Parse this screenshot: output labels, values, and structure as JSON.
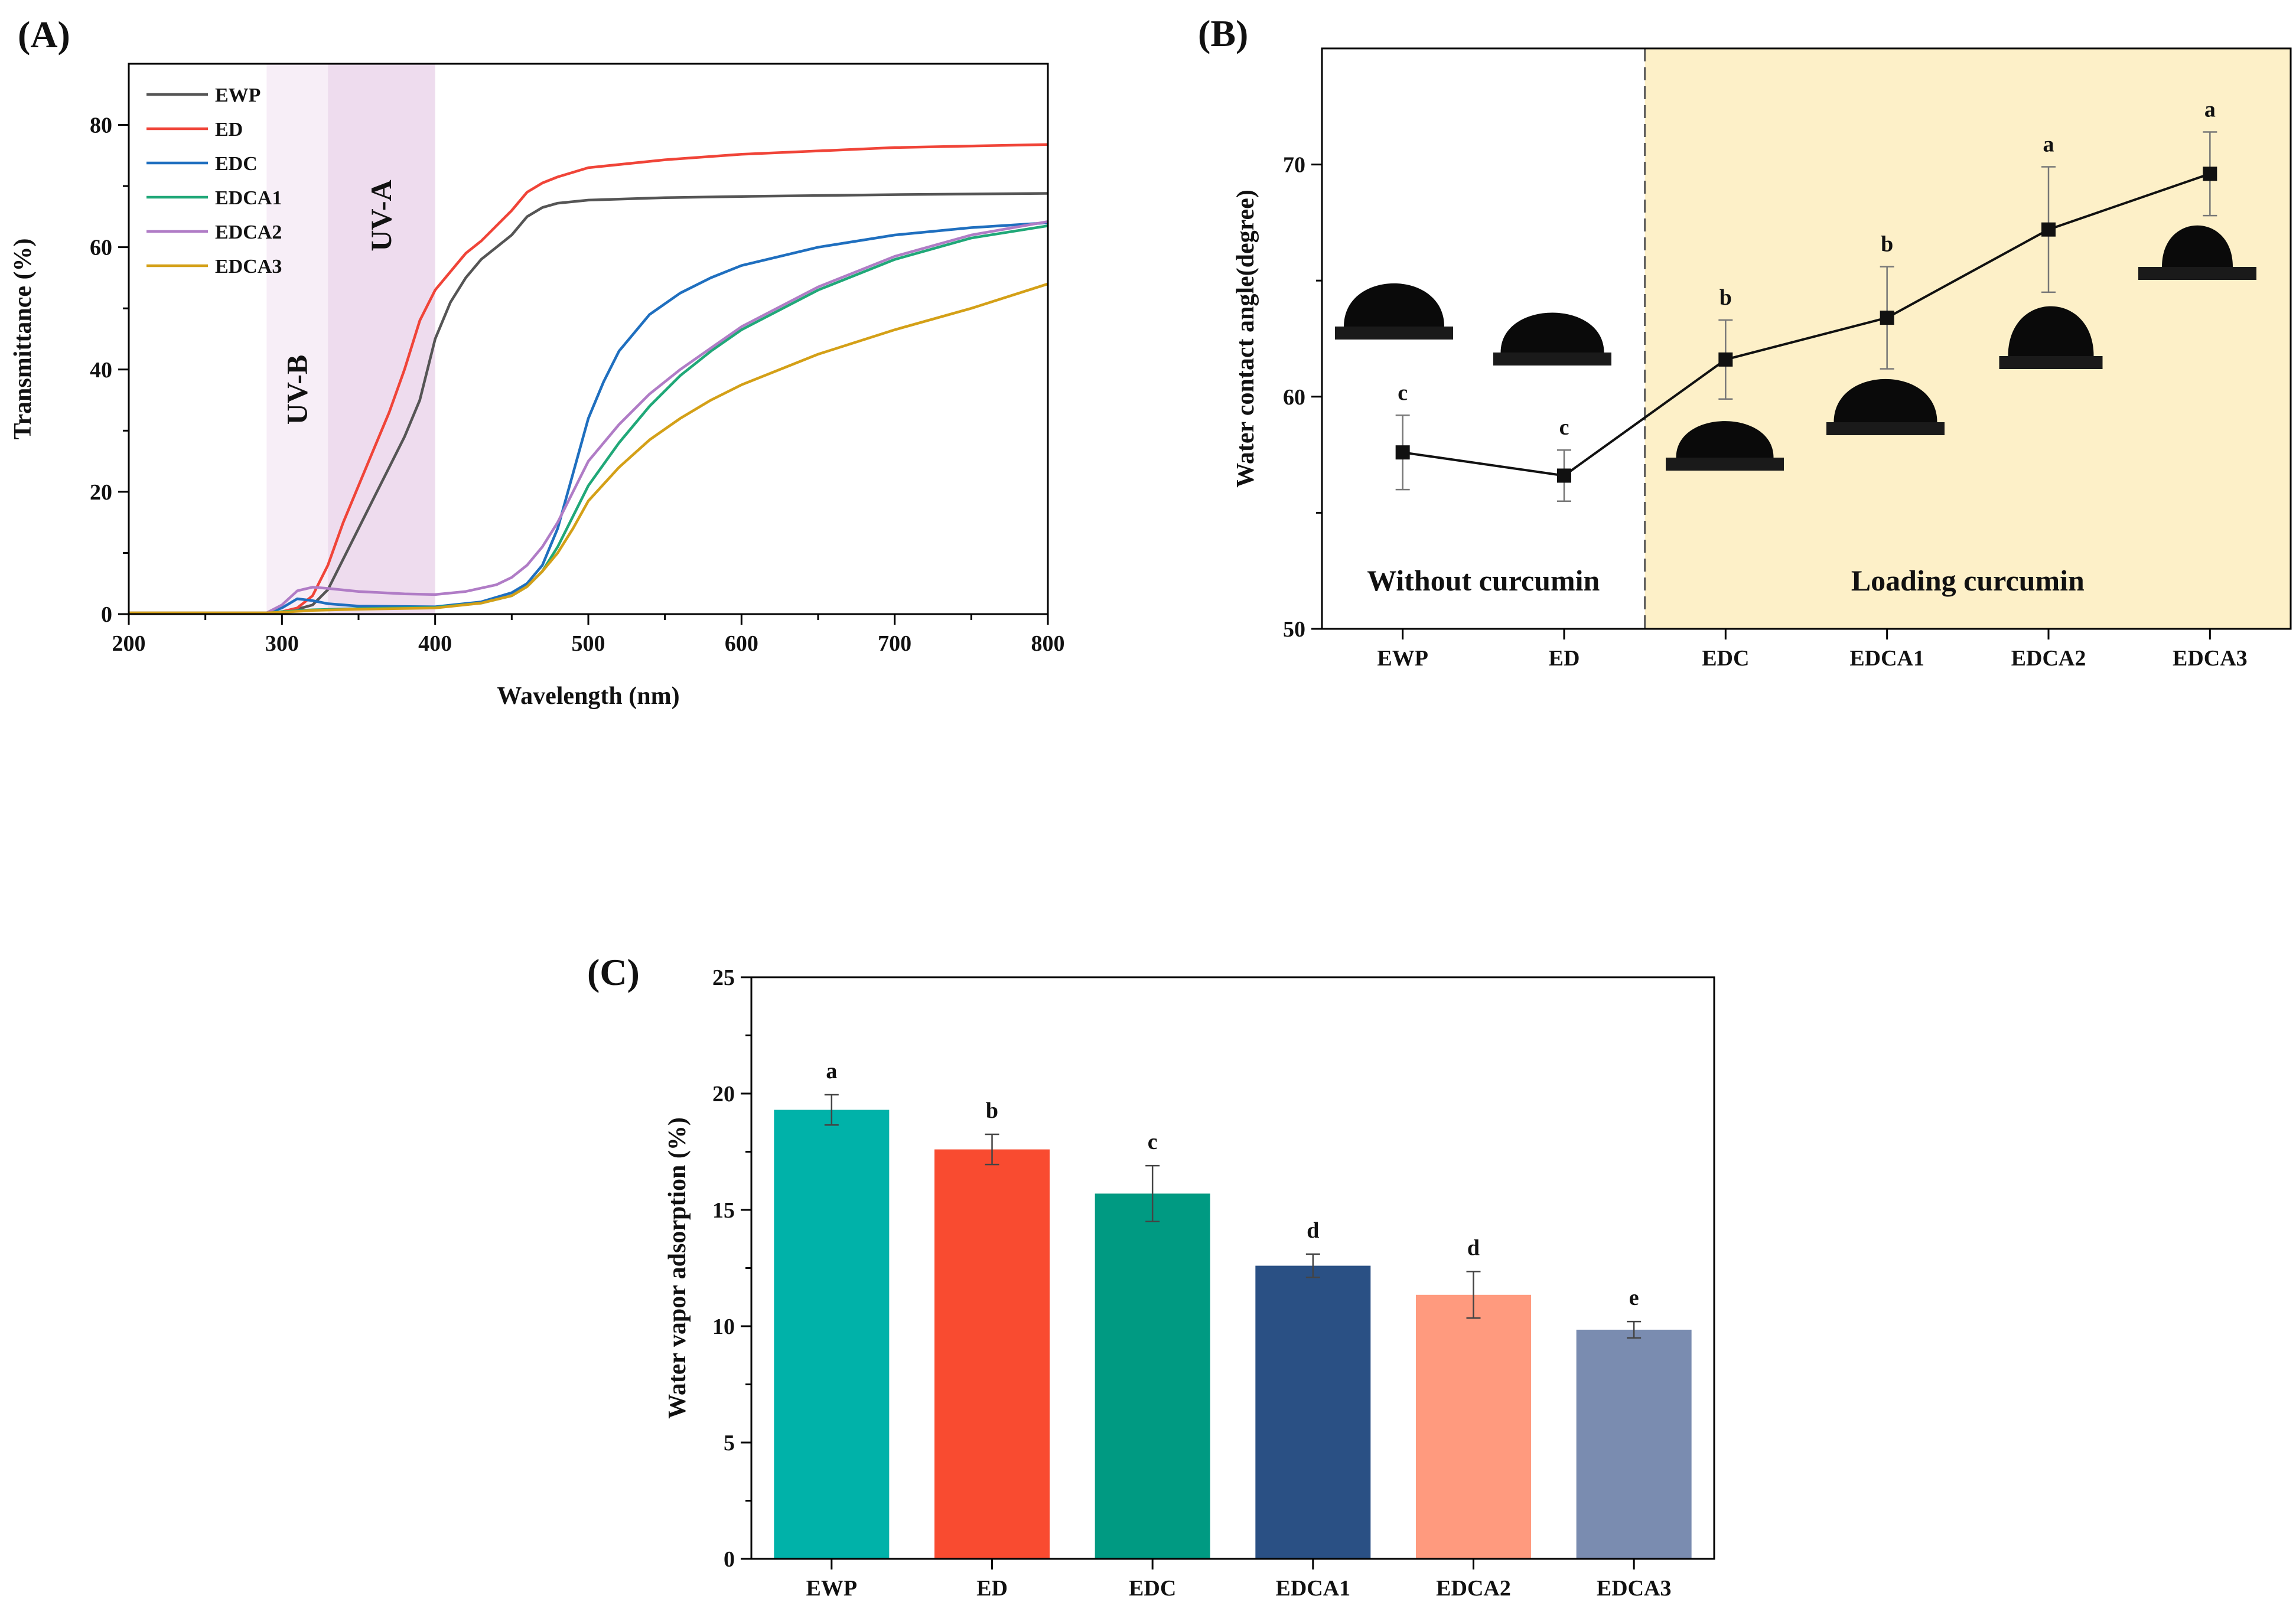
{
  "chart_data": [
    {
      "panel": "(A)",
      "type": "line",
      "xlabel": "Wavelength (nm)",
      "ylabel": "Transmittance (%)",
      "xlim": [
        200,
        800
      ],
      "ylim": [
        0,
        90
      ],
      "xticks": [
        200,
        300,
        400,
        500,
        600,
        700,
        800
      ],
      "yticks": [
        0,
        20,
        40,
        60,
        80
      ],
      "legend_position": "top-left",
      "bands": [
        {
          "label": "UV-B",
          "range": [
            290,
            330
          ],
          "color": "#f7eef7"
        },
        {
          "label": "UV-A",
          "range": [
            330,
            400
          ],
          "color": "#eedcee"
        }
      ],
      "series": [
        {
          "name": "EWP",
          "color": "#555555",
          "points": [
            [
              200,
              0.2
            ],
            [
              250,
              0.2
            ],
            [
              290,
              0.2
            ],
            [
              300,
              0.3
            ],
            [
              310,
              0.8
            ],
            [
              320,
              1.5
            ],
            [
              330,
              4
            ],
            [
              340,
              9
            ],
            [
              350,
              14
            ],
            [
              360,
              19
            ],
            [
              370,
              24
            ],
            [
              380,
              29
            ],
            [
              390,
              35
            ],
            [
              400,
              45
            ],
            [
              410,
              51
            ],
            [
              420,
              55
            ],
            [
              430,
              58
            ],
            [
              440,
              60
            ],
            [
              450,
              62
            ],
            [
              460,
              65
            ],
            [
              470,
              66.5
            ],
            [
              480,
              67.2
            ],
            [
              500,
              67.7
            ],
            [
              550,
              68.1
            ],
            [
              600,
              68.3
            ],
            [
              700,
              68.6
            ],
            [
              800,
              68.8
            ]
          ]
        },
        {
          "name": "ED",
          "color": "#f04438",
          "points": [
            [
              200,
              0.2
            ],
            [
              250,
              0.2
            ],
            [
              290,
              0.2
            ],
            [
              300,
              0.4
            ],
            [
              310,
              1
            ],
            [
              320,
              3
            ],
            [
              330,
              8
            ],
            [
              340,
              15
            ],
            [
              350,
              21
            ],
            [
              360,
              27
            ],
            [
              370,
              33
            ],
            [
              380,
              40
            ],
            [
              390,
              48
            ],
            [
              400,
              53
            ],
            [
              410,
              56
            ],
            [
              420,
              59
            ],
            [
              430,
              61
            ],
            [
              440,
              63.5
            ],
            [
              450,
              66
            ],
            [
              460,
              69
            ],
            [
              470,
              70.5
            ],
            [
              480,
              71.5
            ],
            [
              500,
              73
            ],
            [
              550,
              74.3
            ],
            [
              600,
              75.2
            ],
            [
              700,
              76.3
            ],
            [
              800,
              76.8
            ]
          ]
        },
        {
          "name": "EDC",
          "color": "#1f6fbf",
          "points": [
            [
              200,
              0.2
            ],
            [
              250,
              0.2
            ],
            [
              290,
              0.2
            ],
            [
              300,
              1
            ],
            [
              310,
              2.5
            ],
            [
              320,
              2.2
            ],
            [
              330,
              1.7
            ],
            [
              350,
              1.3
            ],
            [
              400,
              1.2
            ],
            [
              430,
              2
            ],
            [
              450,
              3.5
            ],
            [
              460,
              5
            ],
            [
              470,
              8
            ],
            [
              480,
              14
            ],
            [
              490,
              23
            ],
            [
              500,
              32
            ],
            [
              510,
              38
            ],
            [
              520,
              43
            ],
            [
              540,
              49
            ],
            [
              560,
              52.5
            ],
            [
              580,
              55
            ],
            [
              600,
              57
            ],
            [
              650,
              60
            ],
            [
              700,
              62
            ],
            [
              750,
              63.2
            ],
            [
              800,
              64
            ]
          ]
        },
        {
          "name": "EDCA1",
          "color": "#20a878",
          "points": [
            [
              200,
              0.2
            ],
            [
              250,
              0.2
            ],
            [
              290,
              0.2
            ],
            [
              300,
              0.4
            ],
            [
              320,
              0.7
            ],
            [
              350,
              0.9
            ],
            [
              400,
              1.1
            ],
            [
              430,
              1.8
            ],
            [
              450,
              3
            ],
            [
              460,
              4.5
            ],
            [
              470,
              7
            ],
            [
              480,
              11
            ],
            [
              490,
              16
            ],
            [
              500,
              21
            ],
            [
              520,
              28
            ],
            [
              540,
              34
            ],
            [
              560,
              39
            ],
            [
              580,
              43
            ],
            [
              600,
              46.5
            ],
            [
              650,
              53
            ],
            [
              700,
              58
            ],
            [
              750,
              61.5
            ],
            [
              800,
              63.5
            ]
          ]
        },
        {
          "name": "EDCA2",
          "color": "#b07cc6",
          "points": [
            [
              200,
              0.2
            ],
            [
              250,
              0.2
            ],
            [
              290,
              0.2
            ],
            [
              300,
              1.5
            ],
            [
              310,
              3.8
            ],
            [
              320,
              4.4
            ],
            [
              330,
              4.2
            ],
            [
              350,
              3.7
            ],
            [
              380,
              3.3
            ],
            [
              400,
              3.2
            ],
            [
              420,
              3.7
            ],
            [
              440,
              4.8
            ],
            [
              450,
              6
            ],
            [
              460,
              8
            ],
            [
              470,
              11
            ],
            [
              480,
              15
            ],
            [
              490,
              20
            ],
            [
              500,
              25
            ],
            [
              520,
              31
            ],
            [
              540,
              36
            ],
            [
              560,
              40
            ],
            [
              580,
              43.5
            ],
            [
              600,
              47
            ],
            [
              650,
              53.5
            ],
            [
              700,
              58.5
            ],
            [
              750,
              62
            ],
            [
              800,
              64.2
            ]
          ]
        },
        {
          "name": "EDCA3",
          "color": "#d4a017",
          "points": [
            [
              200,
              0.2
            ],
            [
              250,
              0.2
            ],
            [
              290,
              0.2
            ],
            [
              300,
              0.3
            ],
            [
              320,
              0.6
            ],
            [
              350,
              0.8
            ],
            [
              400,
              1
            ],
            [
              430,
              1.8
            ],
            [
              450,
              3
            ],
            [
              460,
              4.5
            ],
            [
              470,
              7
            ],
            [
              480,
              10
            ],
            [
              490,
              14
            ],
            [
              500,
              18.5
            ],
            [
              520,
              24
            ],
            [
              540,
              28.5
            ],
            [
              560,
              32
            ],
            [
              580,
              35
            ],
            [
              600,
              37.5
            ],
            [
              650,
              42.5
            ],
            [
              700,
              46.5
            ],
            [
              750,
              50
            ],
            [
              800,
              54
            ]
          ]
        }
      ]
    },
    {
      "panel": "(B)",
      "type": "line",
      "ylabel": "Water contact angle(degree)",
      "ylim": [
        50,
        75
      ],
      "yticks": [
        50,
        60,
        70
      ],
      "categories": [
        "EWP",
        "ED",
        "EDC",
        "EDCA1",
        "EDCA2",
        "EDCA3"
      ],
      "values": [
        57.6,
        56.6,
        61.6,
        63.4,
        67.2,
        69.6
      ],
      "errors": [
        1.6,
        1.1,
        1.7,
        2.2,
        2.7,
        1.8
      ],
      "significance": [
        "c",
        "c",
        "b",
        "b",
        "a",
        "a"
      ],
      "regions": [
        {
          "label": "Without curcumin"
        },
        {
          "label": "Loading curcumin",
          "color": "#fdf0c8"
        }
      ]
    },
    {
      "panel": "(C)",
      "type": "bar",
      "ylabel": "Water vapor adsorption (%)",
      "ylim": [
        0,
        25
      ],
      "yticks": [
        0,
        5,
        10,
        15,
        20,
        25
      ],
      "categories": [
        "EWP",
        "ED",
        "EDC",
        "EDCA1",
        "EDCA2",
        "EDCA3"
      ],
      "values": [
        19.3,
        17.6,
        15.7,
        12.6,
        11.35,
        9.85
      ],
      "errors": [
        0.65,
        0.65,
        1.2,
        0.5,
        1.0,
        0.35
      ],
      "significance": [
        "a",
        "b",
        "c",
        "d",
        "d",
        "e"
      ],
      "colors": [
        "#00b2a9",
        "#f94b30",
        "#009a82",
        "#2a5084",
        "#ff9a7e",
        "#7a8cb0"
      ]
    }
  ]
}
